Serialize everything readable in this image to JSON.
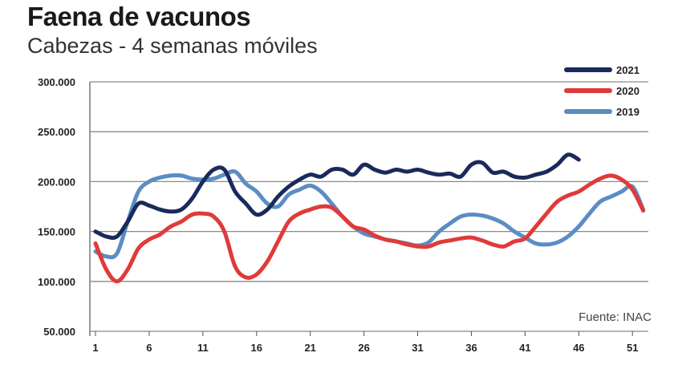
{
  "chart_data": {
    "type": "line",
    "title": "Faena de vacunos",
    "subtitle": "Cabezas - 4 semanas móviles",
    "xlabel": "",
    "ylabel": "",
    "ylim": [
      50000,
      300000
    ],
    "xlim": [
      1,
      53
    ],
    "y_ticks": [
      300000,
      250000,
      200000,
      150000,
      100000,
      50000
    ],
    "y_tick_labels": [
      "300.000",
      "250.000",
      "200.000",
      "150.000",
      "100.000",
      "50.000"
    ],
    "x_ticks": [
      1,
      6,
      11,
      16,
      21,
      26,
      31,
      36,
      41,
      46,
      51
    ],
    "x_tick_labels": [
      "1",
      "6",
      "11",
      "16",
      "21",
      "26",
      "31",
      "36",
      "41",
      "46",
      "51"
    ],
    "grid": "horizontal",
    "legend_position": "top-right",
    "source": "Fuente: INAC",
    "series": [
      {
        "name": "2021",
        "color": "#1b2a5c",
        "x": [
          1,
          2,
          3,
          4,
          5,
          6,
          7,
          8,
          9,
          10,
          11,
          12,
          13,
          14,
          15,
          16,
          17,
          18,
          19,
          20,
          21,
          22,
          23,
          24,
          25,
          26,
          27,
          28,
          29,
          30,
          31,
          32,
          33,
          34,
          35,
          36,
          37,
          38,
          39,
          40,
          41,
          42,
          43,
          44,
          45,
          46
        ],
        "values": [
          150000,
          145000,
          145000,
          160000,
          178000,
          176000,
          172000,
          170000,
          172000,
          183000,
          200000,
          212000,
          212000,
          190000,
          178000,
          167000,
          172000,
          185000,
          195000,
          202000,
          207000,
          205000,
          212000,
          212000,
          207000,
          217000,
          212000,
          209000,
          212000,
          210000,
          212000,
          209000,
          207000,
          208000,
          205000,
          217000,
          219000,
          209000,
          210000,
          205000,
          204000,
          207000,
          210000,
          217000,
          227000,
          222000
        ]
      },
      {
        "name": "2020",
        "color": "#e03a3a",
        "x": [
          1,
          2,
          3,
          4,
          5,
          6,
          7,
          8,
          9,
          10,
          11,
          12,
          13,
          14,
          15,
          16,
          17,
          18,
          19,
          20,
          21,
          22,
          23,
          24,
          25,
          26,
          27,
          28,
          29,
          30,
          31,
          32,
          33,
          34,
          35,
          36,
          37,
          38,
          39,
          40,
          41,
          42,
          43,
          44,
          45,
          46,
          47,
          48,
          49,
          50,
          51,
          52
        ],
        "values": [
          138000,
          112000,
          100000,
          112000,
          133000,
          142000,
          147000,
          155000,
          160000,
          167000,
          168000,
          165000,
          150000,
          115000,
          104000,
          107000,
          120000,
          140000,
          160000,
          168000,
          172000,
          175000,
          174000,
          165000,
          155000,
          152000,
          146000,
          142000,
          140000,
          137000,
          135000,
          135000,
          139000,
          141000,
          143000,
          144000,
          141000,
          137000,
          135000,
          140000,
          143000,
          155000,
          168000,
          180000,
          186000,
          190000,
          197000,
          203000,
          206000,
          202000,
          192000,
          171000
        ]
      },
      {
        "name": "2019",
        "color": "#5b8cc4",
        "x": [
          1,
          2,
          3,
          4,
          5,
          6,
          7,
          8,
          9,
          10,
          11,
          12,
          13,
          14,
          15,
          16,
          17,
          18,
          19,
          20,
          21,
          22,
          23,
          24,
          25,
          26,
          27,
          28,
          29,
          30,
          31,
          32,
          33,
          34,
          35,
          36,
          37,
          38,
          39,
          40,
          41,
          42,
          43,
          44,
          45,
          46,
          47,
          48,
          49,
          50,
          51,
          52
        ],
        "values": [
          130000,
          125000,
          128000,
          160000,
          190000,
          200000,
          204000,
          206000,
          206000,
          203000,
          202000,
          203000,
          207000,
          210000,
          198000,
          190000,
          178000,
          175000,
          187000,
          192000,
          196000,
          190000,
          178000,
          165000,
          155000,
          148000,
          145000,
          142000,
          140000,
          138000,
          136000,
          139000,
          150000,
          158000,
          165000,
          167000,
          166000,
          163000,
          158000,
          150000,
          144000,
          138000,
          137000,
          139000,
          145000,
          155000,
          168000,
          180000,
          185000,
          190000,
          195000,
          172000
        ]
      }
    ]
  }
}
